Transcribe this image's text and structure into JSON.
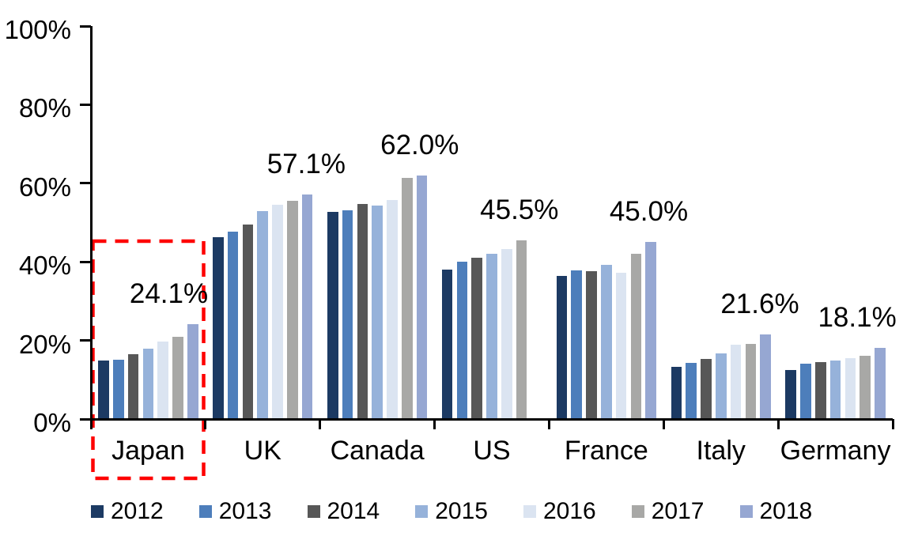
{
  "chart_data": {
    "type": "bar",
    "title": "",
    "xlabel": "",
    "ylabel": "",
    "ylim": [
      0,
      100
    ],
    "grid": false,
    "legend_position": "bottom",
    "y_ticks": [
      "100%",
      "80%",
      "60%",
      "40%",
      "20%",
      "0%"
    ],
    "categories": [
      "Japan",
      "UK",
      "Canada",
      "US",
      "France",
      "Italy",
      "Germany"
    ],
    "series": [
      {
        "name": "2012",
        "color": "#1C3A63",
        "values": [
          14.9,
          46.2,
          52.8,
          38.0,
          36.4,
          13.3,
          12.4
        ]
      },
      {
        "name": "2013",
        "color": "#4D7EBB",
        "values": [
          15.1,
          47.6,
          53.2,
          40.0,
          37.8,
          14.2,
          14.0
        ]
      },
      {
        "name": "2014",
        "color": "#575757",
        "values": [
          16.5,
          49.5,
          54.7,
          41.0,
          37.6,
          15.3,
          14.5
        ]
      },
      {
        "name": "2015",
        "color": "#96B2DA",
        "values": [
          18.0,
          53.0,
          54.4,
          42.0,
          39.2,
          16.8,
          14.8
        ]
      },
      {
        "name": "2016",
        "color": "#DBE4F1",
        "values": [
          19.8,
          54.5,
          55.8,
          43.3,
          37.3,
          19.0,
          15.5
        ]
      },
      {
        "name": "2017",
        "color": "#A8A8A6",
        "values": [
          21.0,
          55.5,
          61.4,
          45.5,
          42.1,
          19.1,
          16.0
        ]
      },
      {
        "name": "2018",
        "color": "#96A7D2",
        "values": [
          24.1,
          57.1,
          62.0,
          null,
          45.0,
          21.6,
          18.1
        ]
      }
    ],
    "data_labels": [
      "24.1%",
      "57.1%",
      "62.0%",
      "45.5%",
      "45.0%",
      "21.6%",
      "18.1%"
    ],
    "annotations": {
      "highlight": "Japan group outlined with red dashed rectangle"
    }
  },
  "colors": {
    "axis": "#000000",
    "highlight": "#FE0000",
    "background": "#FFFFFF",
    "text": "#000000"
  }
}
